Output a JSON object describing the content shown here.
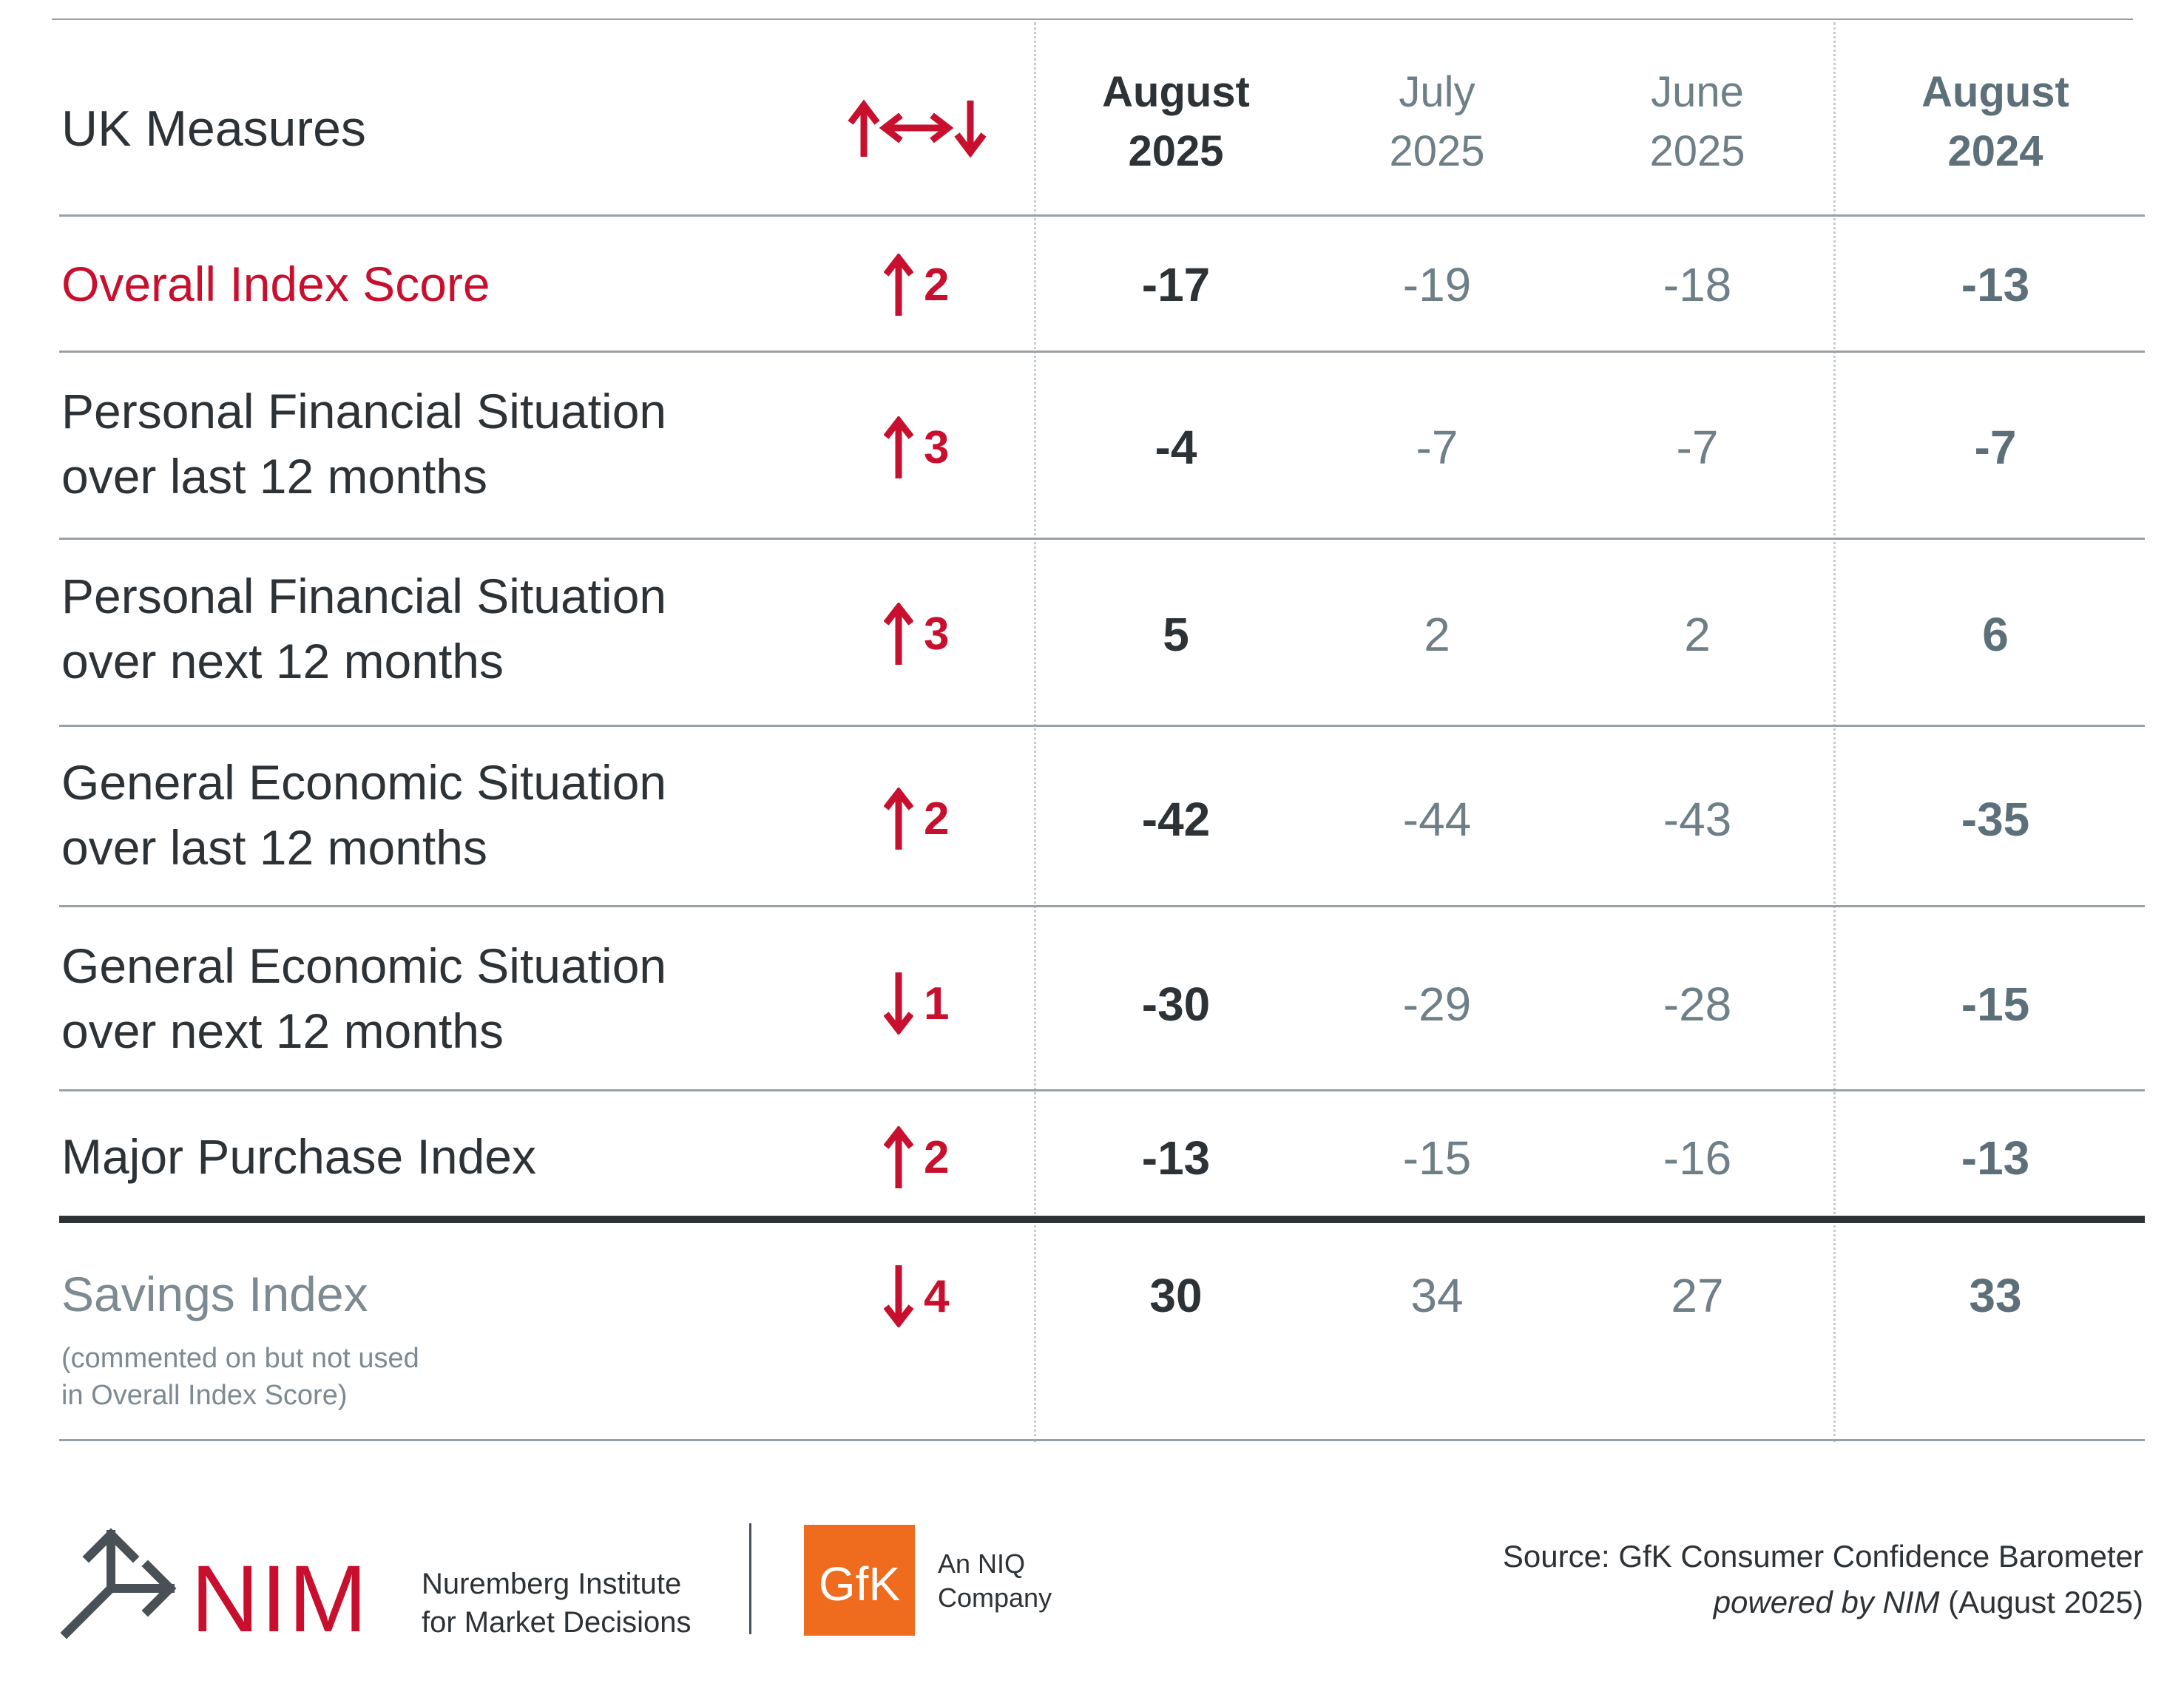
{
  "header": {
    "title": "UK Measures",
    "cols": [
      {
        "line1": "August",
        "line2": "2025"
      },
      {
        "line1": "July",
        "line2": "2025"
      },
      {
        "line1": "June",
        "line2": "2025"
      },
      {
        "line1": "August",
        "line2": "2024"
      }
    ]
  },
  "rows": [
    {
      "label": "Overall Index Score",
      "dir": "up",
      "change": "2",
      "values": [
        "-17",
        "-19",
        "-18",
        "-13"
      ]
    },
    {
      "line1": "Personal Financial Situation",
      "line2": "over last 12 months",
      "dir": "up",
      "change": "3",
      "values": [
        "-4",
        "-7",
        "-7",
        "-7"
      ]
    },
    {
      "line1": "Personal Financial Situation",
      "line2": "over next 12 months",
      "dir": "up",
      "change": "3",
      "values": [
        "5",
        "2",
        "2",
        "6"
      ]
    },
    {
      "line1": "General Economic Situation",
      "line2": "over last 12 months",
      "dir": "up",
      "change": "2",
      "values": [
        "-42",
        "-44",
        "-43",
        "-35"
      ]
    },
    {
      "line1": "General Economic Situation",
      "line2": "over next 12 months",
      "dir": "down",
      "change": "1",
      "values": [
        "-30",
        "-29",
        "-28",
        "-15"
      ]
    },
    {
      "label": "Major Purchase Index",
      "dir": "up",
      "change": "2",
      "values": [
        "-13",
        "-15",
        "-16",
        "-13"
      ]
    }
  ],
  "savings": {
    "label": "Savings Index",
    "note_line1": "(commented on but not used",
    "note_line2": "in Overall Index Score)",
    "dir": "down",
    "change": "4",
    "values": [
      "30",
      "34",
      "27",
      "33"
    ]
  },
  "footer": {
    "nim_logo": "NIM",
    "nim_line1": "Nuremberg Institute",
    "nim_line2": "for Market Decisions",
    "gfk_logo": "GfK",
    "gfk_line1": "An NIQ",
    "gfk_line2": "Company",
    "source_line1": "Source: GfK Consumer Confidence Barometer",
    "source_italic": "powered by NIM",
    "source_date": " (August 2025)"
  },
  "colors": {
    "accent_red": "#c8102e",
    "text_dark": "#2d3236",
    "text_grey": "#6f7f87",
    "gfk_orange": "#ef6c1f"
  }
}
